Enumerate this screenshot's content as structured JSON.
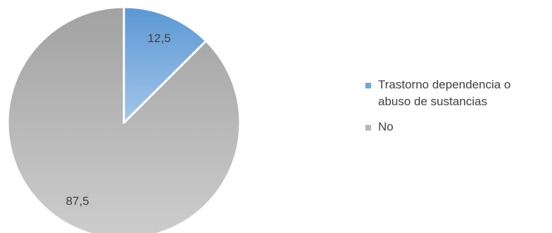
{
  "chart_data": {
    "type": "pie",
    "categories": [
      "Trastorno dependencia o abuso de sustancias",
      "No"
    ],
    "values": [
      12.5,
      87.5
    ],
    "value_labels": [
      "12,5",
      "87,5"
    ],
    "colors": [
      "#6fa6dc",
      "#b5b5b5"
    ],
    "legend_position": "right",
    "legend": [
      {
        "label_lines": [
          "Trastorno dependencia o",
          "abuso de sustancias"
        ],
        "color": "#6fa6dc"
      },
      {
        "label_lines": [
          "No"
        ],
        "color": "#b5b5b5"
      }
    ]
  }
}
